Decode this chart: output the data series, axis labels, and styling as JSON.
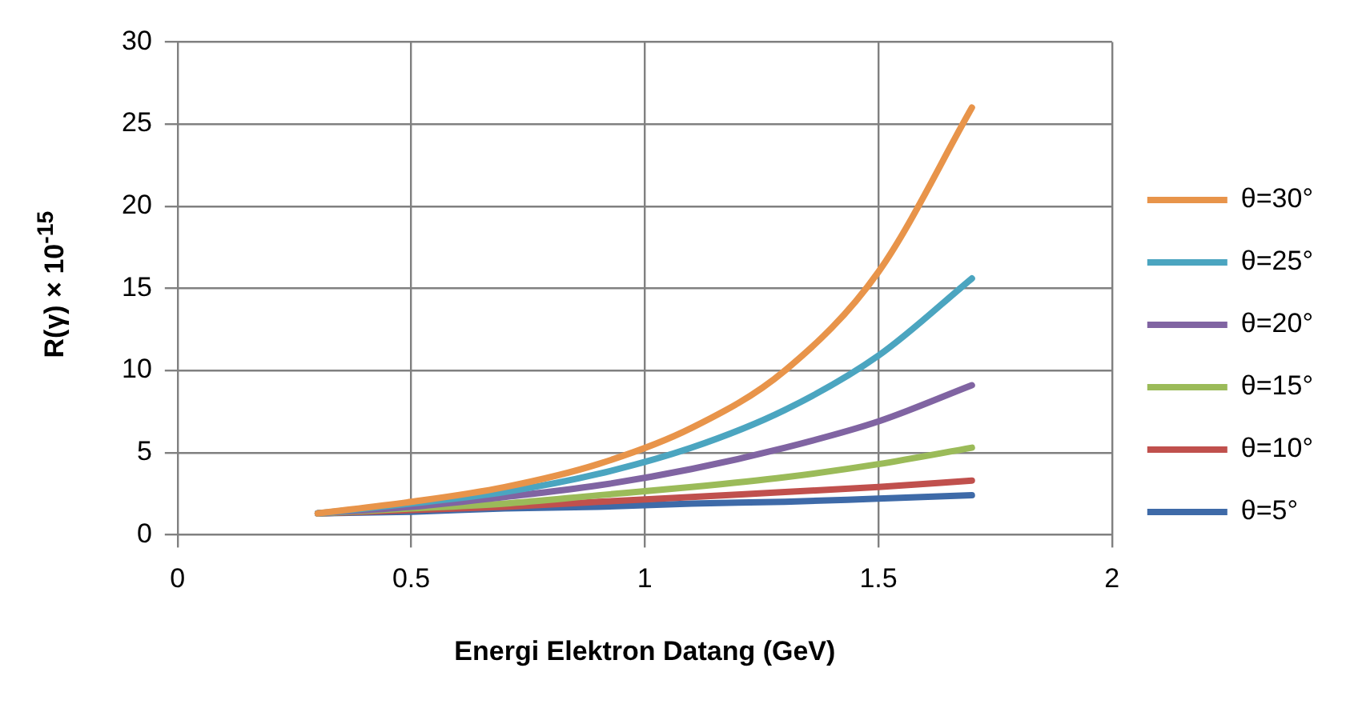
{
  "chart_data": {
    "type": "line",
    "xlabel": "Energi Elektron Datang (GeV)",
    "ylabel": "R(γ) × 10$^{-15}$",
    "x": [
      0.3,
      0.5,
      0.7,
      0.9,
      1.1,
      1.3,
      1.5,
      1.7
    ],
    "xlim": [
      0,
      2
    ],
    "xticks": [
      0,
      0.5,
      1,
      1.5,
      2
    ],
    "ylim": [
      0,
      30
    ],
    "yticks": [
      0,
      5,
      10,
      15,
      20,
      25,
      30
    ],
    "grid": true,
    "legend": "right",
    "marker": "none",
    "line_style": "solid",
    "series": [
      {
        "name": "θ=30°",
        "color": "#e8944a",
        "values": [
          1.3,
          2.0,
          2.9,
          4.3,
          6.5,
          10.0,
          16.0,
          26.0
        ]
      },
      {
        "name": "θ=25°",
        "color": "#4ba5c0",
        "values": [
          1.3,
          1.9,
          2.6,
          3.7,
          5.3,
          7.6,
          10.9,
          15.6
        ]
      },
      {
        "name": "θ=20°",
        "color": "#8064a2",
        "values": [
          1.3,
          1.7,
          2.3,
          3.0,
          4.0,
          5.3,
          6.9,
          9.1
        ]
      },
      {
        "name": "θ=15°",
        "color": "#9bbb59",
        "values": [
          1.3,
          1.6,
          1.9,
          2.4,
          2.9,
          3.5,
          4.3,
          5.3
        ]
      },
      {
        "name": "θ=10°",
        "color": "#c0504d",
        "values": [
          1.3,
          1.5,
          1.7,
          2.0,
          2.3,
          2.6,
          2.9,
          3.3
        ]
      },
      {
        "name": "θ=5°",
        "color": "#3e6aa8",
        "values": [
          1.3,
          1.4,
          1.6,
          1.7,
          1.9,
          2.0,
          2.2,
          2.4
        ]
      }
    ]
  }
}
